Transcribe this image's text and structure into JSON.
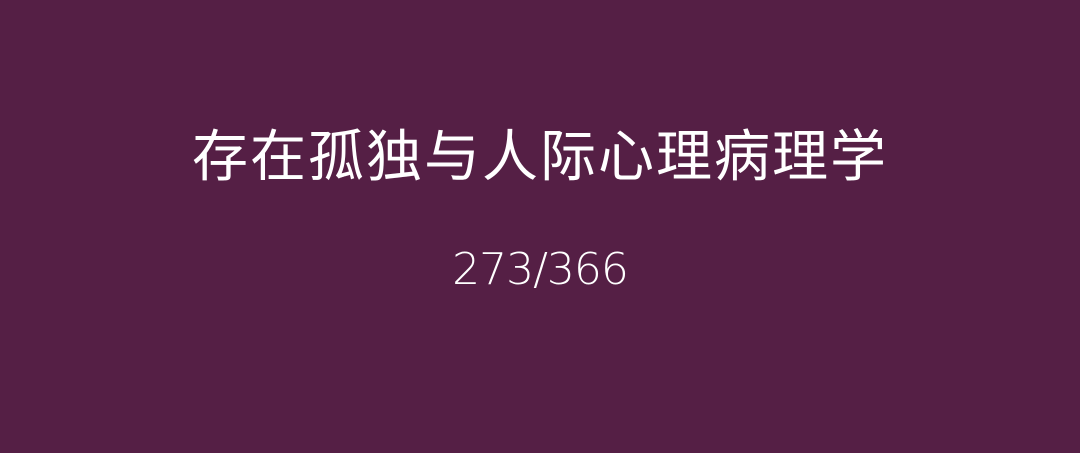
{
  "colors": {
    "background": "#551f45",
    "text": "#ffffff"
  },
  "card": {
    "title": "存在孤独与人际心理病理学",
    "page_counter": "273/366"
  }
}
